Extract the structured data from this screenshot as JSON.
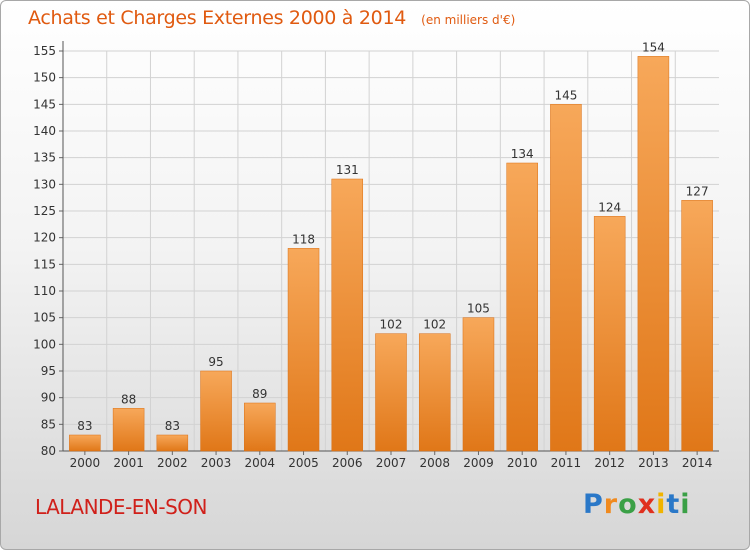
{
  "header": {
    "title": "Achats et Charges Externes 2000 à 2014",
    "subtitle": "(en milliers d'€)"
  },
  "footer": {
    "place": "LALANDE-EN-SON",
    "brand": "Proxiti",
    "brand_colors": [
      "#2a78c8",
      "#f08a1e",
      "#3aa046",
      "#e0301e",
      "#f0b400",
      "#2a78c8",
      "#3aa046"
    ]
  },
  "colors": {
    "bar_top": "#f7a85a",
    "bar_bottom": "#e07718",
    "title": "#e05a10",
    "place": "#d0201a"
  },
  "chart_data": {
    "type": "bar",
    "title": "Achats et Charges Externes 2000 à 2014",
    "subtitle": "(en milliers d'€)",
    "categories": [
      "2000",
      "2001",
      "2002",
      "2003",
      "2004",
      "2005",
      "2006",
      "2007",
      "2008",
      "2009",
      "2010",
      "2011",
      "2012",
      "2013",
      "2014"
    ],
    "values": [
      83,
      88,
      83,
      95,
      89,
      118,
      131,
      102,
      102,
      105,
      134,
      145,
      124,
      154,
      127
    ],
    "ylim": [
      80,
      155
    ],
    "yticks": [
      80,
      85,
      90,
      95,
      100,
      105,
      110,
      115,
      120,
      125,
      130,
      135,
      140,
      145,
      150,
      155
    ],
    "grid": true,
    "data_labels": true
  }
}
